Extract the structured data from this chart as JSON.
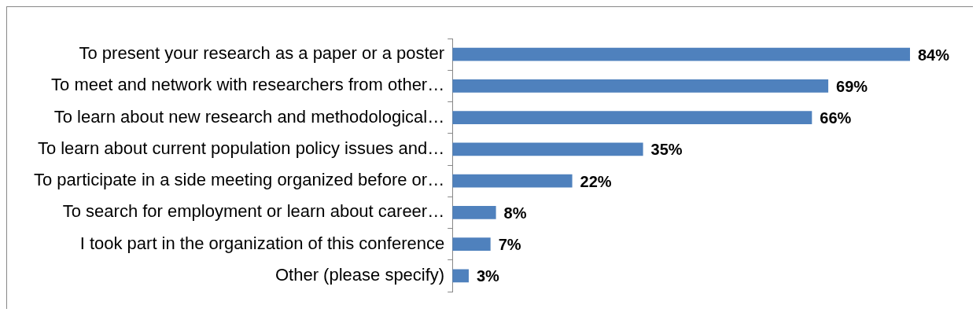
{
  "chart_data": {
    "type": "bar",
    "orientation": "horizontal",
    "legend": false,
    "categories": [
      "To present your research as a paper or a poster",
      "To meet and network with researchers from other…",
      "To learn about new research and methodological…",
      "To learn about current population policy issues and…",
      "To participate in a side meeting organized before or…",
      "To search for employment or learn about career…",
      "I took part in the organization of this conference",
      "Other (please specify)"
    ],
    "values": [
      84,
      69,
      66,
      35,
      22,
      8,
      7,
      3
    ],
    "value_labels": [
      "84%",
      "69%",
      "66%",
      "35%",
      "22%",
      "8%",
      "7%",
      "3%"
    ],
    "color": "#4f81bd"
  }
}
